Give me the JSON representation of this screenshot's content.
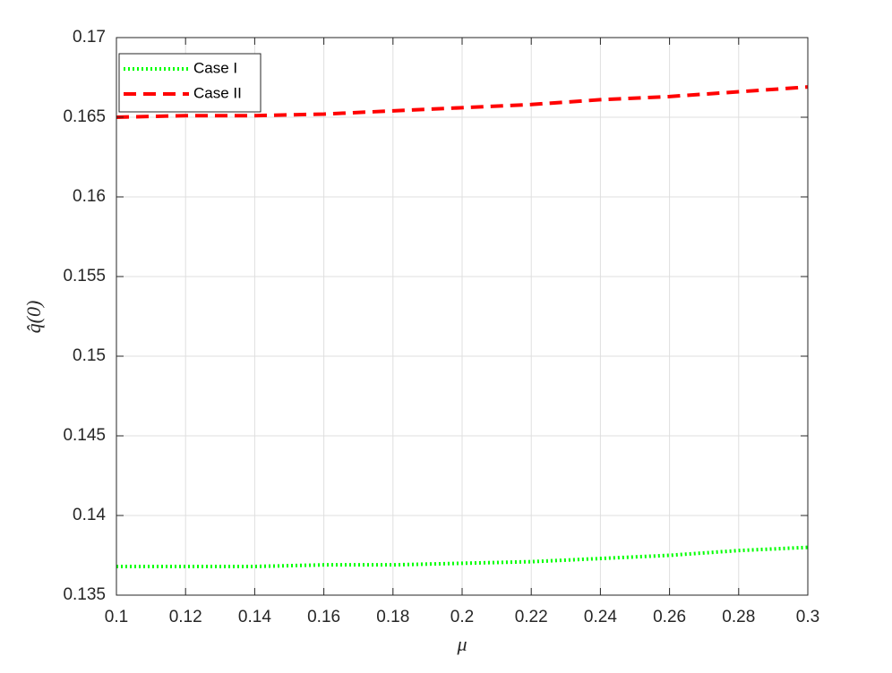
{
  "chart_data": {
    "type": "line",
    "x_label": "μ",
    "y_label": "q̂(0)",
    "x": [
      0.1,
      0.12,
      0.14,
      0.16,
      0.18,
      0.2,
      0.22,
      0.24,
      0.26,
      0.28,
      0.3
    ],
    "series": [
      {
        "name": "Case I",
        "color": "#00ff00",
        "dash": "dotted",
        "values": [
          0.1368,
          0.1368,
          0.1368,
          0.1369,
          0.1369,
          0.137,
          0.1371,
          0.1373,
          0.1375,
          0.1378,
          0.138
        ]
      },
      {
        "name": "Case II",
        "color": "#ff0000",
        "dash": "dashed",
        "values": [
          0.165,
          0.1651,
          0.1651,
          0.1652,
          0.1654,
          0.1656,
          0.1658,
          0.1661,
          0.1663,
          0.1666,
          0.1669
        ]
      }
    ],
    "xlim": [
      0.1,
      0.3
    ],
    "xticks": [
      0.1,
      0.12,
      0.14,
      0.16,
      0.18,
      0.2,
      0.22,
      0.24,
      0.26,
      0.28,
      0.3
    ],
    "ylim": [
      0.135,
      0.17
    ],
    "yticks": [
      0.135,
      0.14,
      0.145,
      0.15,
      0.155,
      0.16,
      0.165,
      0.17
    ],
    "grid": true,
    "legend": "upper-left"
  }
}
